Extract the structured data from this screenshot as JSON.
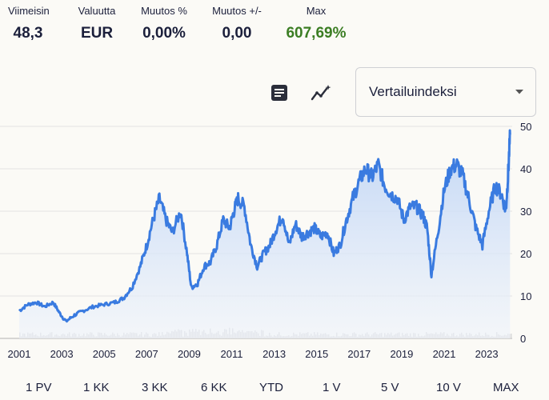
{
  "stats": [
    {
      "label": "Viimeisin",
      "value": "48,3"
    },
    {
      "label": "Valuutta",
      "value": "EUR"
    },
    {
      "label": "Muutos %",
      "value": "0,00%"
    },
    {
      "label": "Muutos +/-",
      "value": "0,00"
    },
    {
      "label": "Max",
      "value": "607,69%"
    }
  ],
  "toolbar": {
    "table_icon": "table-view-icon",
    "chart_icon": "chart-settings-icon",
    "comparison_select": "Vertailuindeksi"
  },
  "ranges": [
    "1 PV",
    "1 KK",
    "3 KK",
    "6 KK",
    "YTD",
    "1 V",
    "5 V",
    "10 V",
    "MAX"
  ],
  "colors": {
    "line": "#3a7be0",
    "fill_top": "#b9d1f5",
    "fill_bottom": "#eef3fb",
    "positive": "#3b7d23",
    "volume": "#d9d9d9"
  },
  "chart_data": {
    "type": "area",
    "x_ticks": [
      "2001",
      "2003",
      "2005",
      "2007",
      "2009",
      "2011",
      "2013",
      "2015",
      "2017",
      "2019",
      "2021",
      "2023"
    ],
    "y_ticks": [
      "0",
      "10",
      "20",
      "30",
      "40",
      "50"
    ],
    "ylim": [
      0,
      50
    ],
    "xlim": [
      2001,
      2024.2
    ],
    "grid": true,
    "series": [
      {
        "x": [
          2001.0,
          2001.4,
          2001.8,
          2002.2,
          2002.6,
          2002.9,
          2003.2,
          2003.6,
          2004.0,
          2004.5,
          2005.0,
          2005.5,
          2005.9,
          2006.3,
          2006.7,
          2007.0,
          2007.3,
          2007.6,
          2007.9,
          2008.2,
          2008.6,
          2008.9,
          2009.1,
          2009.4,
          2009.7,
          2010.0,
          2010.3,
          2010.6,
          2010.9,
          2011.1,
          2011.3,
          2011.6,
          2011.9,
          2012.2,
          2012.5,
          2012.8,
          2013.1,
          2013.4,
          2013.7,
          2014.0,
          2014.3,
          2014.6,
          2014.9,
          2015.2,
          2015.5,
          2015.8,
          2016.1,
          2016.4,
          2016.7,
          2017.0,
          2017.3,
          2017.6,
          2017.9,
          2018.2,
          2018.5,
          2018.8,
          2019.1,
          2019.4,
          2019.7,
          2020.0,
          2020.2,
          2020.4,
          2020.7,
          2021.0,
          2021.3,
          2021.6,
          2021.9,
          2022.2,
          2022.5,
          2022.8,
          2023.1,
          2023.4,
          2023.7,
          2023.9,
          2024.0,
          2024.1
        ],
        "y": [
          6.5,
          8,
          8.5,
          7.5,
          8.5,
          6,
          4,
          5.5,
          6.5,
          7.5,
          8,
          8.5,
          9.5,
          12,
          17,
          22,
          28,
          33,
          28,
          25,
          30,
          20,
          12,
          13,
          17,
          18,
          22,
          28,
          26,
          30,
          33,
          31,
          22,
          17,
          20,
          22,
          26,
          29,
          22,
          27,
          24,
          25,
          26,
          24,
          25,
          20,
          22,
          28,
          33,
          37,
          40,
          38,
          41,
          36,
          34,
          33,
          28,
          31,
          31,
          29,
          26,
          15,
          25,
          35,
          40,
          41,
          38,
          32,
          26,
          22,
          30,
          36,
          34,
          30,
          38,
          48
        ]
      }
    ]
  }
}
